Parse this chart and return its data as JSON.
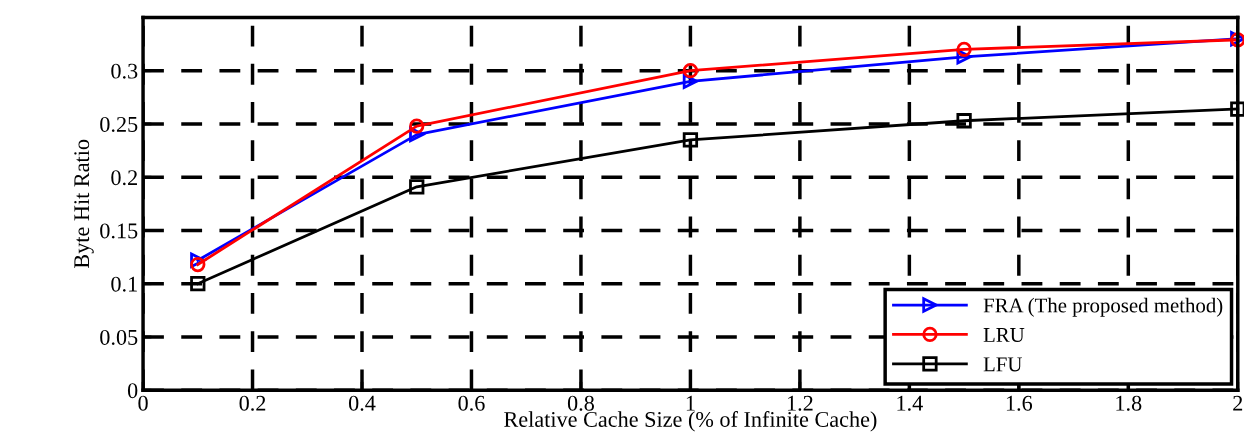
{
  "chart_data": {
    "type": "line",
    "xlabel": "Relative Cache Size (% of Infinite Cache)",
    "ylabel": "Byte Hit Ratio",
    "x": [
      0.1,
      0.5,
      1,
      1.5,
      2
    ],
    "series": [
      {
        "name": "FRA (The proposed method)",
        "color": "#0000ff",
        "marker": "triangle",
        "values": [
          0.122,
          0.24,
          0.29,
          0.313,
          0.33
        ]
      },
      {
        "name": "LRU",
        "color": "#ff0000",
        "marker": "circle",
        "values": [
          0.118,
          0.248,
          0.3,
          0.32,
          0.329
        ]
      },
      {
        "name": "LFU",
        "color": "#000000",
        "marker": "square",
        "values": [
          0.1,
          0.191,
          0.235,
          0.253,
          0.264
        ]
      }
    ],
    "xlim": [
      0,
      2
    ],
    "xticks": [
      0,
      0.2,
      0.4,
      0.6,
      0.8,
      1,
      1.2,
      1.4,
      1.6,
      1.8,
      2
    ],
    "ylim": [
      0,
      0.35
    ],
    "yticks": [
      0,
      0.05,
      0.1,
      0.15,
      0.2,
      0.25,
      0.3
    ],
    "grid": true,
    "legend": "bottom right",
    "line_style": "solid"
  }
}
